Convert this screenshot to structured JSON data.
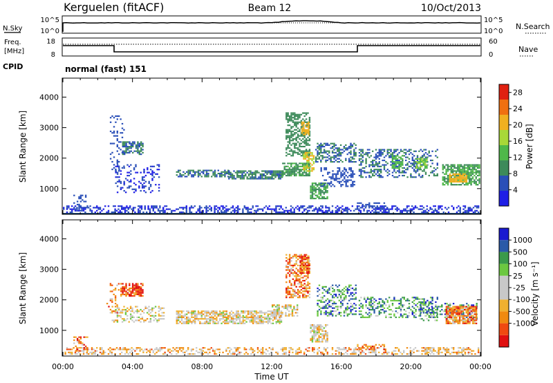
{
  "header": {
    "station": "Kerguelen (fitACF)",
    "beam": "Beam 12",
    "date": "10/Oct/2013"
  },
  "status": {
    "nsky_label": "N.Sky",
    "nsearch_label": "N.Search",
    "noise_ticks": [
      "10^5",
      "10^0"
    ],
    "freq_label": "Freq.",
    "freq_unit": "[MHz]",
    "freq_ticks": [
      "18",
      "8"
    ],
    "nave_label": "Nave",
    "nave_ticks": [
      "60",
      "0"
    ],
    "cpid_label": "CPID",
    "cpid_value": "normal (fast) 151"
  },
  "colors": {
    "power": [
      "#1f1fe6",
      "#2a4fb8",
      "#3d8a5a",
      "#4fb84a",
      "#a8d838",
      "#f0b020",
      "#f07010",
      "#e02010"
    ],
    "velocity": [
      "#e01010",
      "#f04a10",
      "#f08a10",
      "#f0b030",
      "#c8c8c8",
      "#c8c8c8",
      "#6cc840",
      "#3a9a4a",
      "#2a5aa8",
      "#1a1ad0"
    ]
  },
  "chart_data": [
    {
      "type": "heatmap",
      "panel": "power",
      "xlabel": "",
      "ylabel": "Slant Range [km]",
      "yticks": [
        "1000",
        "2000",
        "3000",
        "4000"
      ],
      "ylim": [
        180,
        4600
      ],
      "xlim": [
        0,
        24
      ],
      "colorbar": {
        "label": "Power [dB]",
        "ticks": [
          "4",
          "8",
          "12",
          "16",
          "20",
          "24",
          "28"
        ],
        "range": [
          0,
          30
        ]
      },
      "regions": [
        {
          "t0": 0.0,
          "t1": 23.9,
          "r0": 250,
          "r1": 450,
          "value": 4,
          "density": 0.45
        },
        {
          "t0": 0.6,
          "t1": 1.4,
          "r0": 350,
          "r1": 800,
          "value": 6,
          "density": 0.35
        },
        {
          "t0": 2.7,
          "t1": 3.5,
          "r0": 1600,
          "r1": 3400,
          "value": 6,
          "density": 0.18
        },
        {
          "t0": 3.4,
          "t1": 4.6,
          "r0": 2150,
          "r1": 2550,
          "value": 8,
          "density": 0.7
        },
        {
          "t0": 3.0,
          "t1": 5.5,
          "r0": 900,
          "r1": 1800,
          "value": 4,
          "density": 0.22
        },
        {
          "t0": 6.5,
          "t1": 9.5,
          "r0": 1380,
          "r1": 1620,
          "value": 8,
          "density": 0.6
        },
        {
          "t0": 9.5,
          "t1": 12.6,
          "r0": 1350,
          "r1": 1600,
          "value": 9,
          "density": 0.75
        },
        {
          "t0": 12.6,
          "t1": 14.2,
          "r0": 1450,
          "r1": 1850,
          "value": 11,
          "density": 0.75
        },
        {
          "t0": 12.8,
          "t1": 14.2,
          "r0": 2100,
          "r1": 3500,
          "value": 10,
          "density": 0.55
        },
        {
          "t0": 13.7,
          "t1": 14.1,
          "r0": 2800,
          "r1": 3200,
          "value": 22,
          "density": 0.85
        },
        {
          "t0": 13.8,
          "t1": 14.4,
          "r0": 1600,
          "r1": 2200,
          "value": 20,
          "density": 0.6
        },
        {
          "t0": 14.2,
          "t1": 15.2,
          "r0": 700,
          "r1": 1200,
          "value": 12,
          "density": 0.7
        },
        {
          "t0": 14.5,
          "t1": 16.8,
          "r0": 1900,
          "r1": 2500,
          "value": 8,
          "density": 0.45
        },
        {
          "t0": 14.8,
          "t1": 16.8,
          "r0": 1100,
          "r1": 1700,
          "value": 6,
          "density": 0.35
        },
        {
          "t0": 16.9,
          "t1": 18.5,
          "r0": 400,
          "r1": 550,
          "value": 6,
          "density": 0.4
        },
        {
          "t0": 17.0,
          "t1": 21.5,
          "r0": 1400,
          "r1": 2300,
          "value": 8,
          "density": 0.38
        },
        {
          "t0": 18.9,
          "t1": 19.5,
          "r0": 1700,
          "r1": 2100,
          "value": 14,
          "density": 0.7
        },
        {
          "t0": 20.3,
          "t1": 20.9,
          "r0": 1700,
          "r1": 2000,
          "value": 15,
          "density": 0.7
        },
        {
          "t0": 21.8,
          "t1": 23.9,
          "r0": 1150,
          "r1": 1800,
          "value": 12,
          "density": 0.75
        },
        {
          "t0": 22.2,
          "t1": 23.2,
          "r0": 1250,
          "r1": 1500,
          "value": 22,
          "density": 0.8
        }
      ]
    },
    {
      "type": "heatmap",
      "panel": "velocity",
      "xlabel": "Time UT",
      "ylabel": "Slant Range [km]",
      "xticks": [
        "00:00",
        "04:00",
        "08:00",
        "12:00",
        "16:00",
        "20:00",
        "00:00"
      ],
      "yticks": [
        "1000",
        "2000",
        "3000",
        "4000"
      ],
      "ylim": [
        180,
        4600
      ],
      "xlim": [
        0,
        24
      ],
      "colorbar": {
        "label": "Velocity [m s⁻¹]",
        "ticks": [
          "1000",
          "500",
          "100",
          "25",
          "-25",
          "-100",
          "-500",
          "-1000"
        ]
      },
      "regions": [
        {
          "t0": 0.0,
          "t1": 23.9,
          "r0": 250,
          "r1": 450,
          "value": 3,
          "density": 0.4
        },
        {
          "t0": 0.6,
          "t1": 1.4,
          "r0": 350,
          "r1": 800,
          "value": 2,
          "density": 0.35
        },
        {
          "t0": 2.5,
          "t1": 3.2,
          "r0": 1600,
          "r1": 2600,
          "value": 2,
          "density": 0.2
        },
        {
          "t0": 3.3,
          "t1": 4.6,
          "r0": 2150,
          "r1": 2550,
          "value": 1,
          "density": 0.75
        },
        {
          "t0": 2.8,
          "t1": 5.8,
          "r0": 1300,
          "r1": 1800,
          "value": 4,
          "density": 0.35
        },
        {
          "t0": 6.5,
          "t1": 12.6,
          "r0": 1250,
          "r1": 1650,
          "value": 4,
          "density": 0.7
        },
        {
          "t0": 12.0,
          "t1": 13.5,
          "r0": 1500,
          "r1": 1850,
          "value": 4,
          "density": 0.55
        },
        {
          "t0": 12.8,
          "t1": 14.2,
          "r0": 2100,
          "r1": 3500,
          "value": 2,
          "density": 0.55
        },
        {
          "t0": 13.6,
          "t1": 14.1,
          "r0": 2900,
          "r1": 3450,
          "value": 1,
          "density": 0.8
        },
        {
          "t0": 14.2,
          "t1": 15.2,
          "r0": 650,
          "r1": 1200,
          "value": 4,
          "density": 0.7
        },
        {
          "t0": 14.6,
          "t1": 16.8,
          "r0": 1500,
          "r1": 2500,
          "value": 7,
          "density": 0.4
        },
        {
          "t0": 16.9,
          "t1": 18.5,
          "r0": 400,
          "r1": 550,
          "value": 2,
          "density": 0.35
        },
        {
          "t0": 17.0,
          "t1": 21.5,
          "r0": 1450,
          "r1": 2100,
          "value": 7,
          "density": 0.4
        },
        {
          "t0": 20.5,
          "t1": 23.8,
          "r0": 1350,
          "r1": 1900,
          "value": 7,
          "density": 0.35
        },
        {
          "t0": 22.0,
          "t1": 23.8,
          "r0": 1250,
          "r1": 1800,
          "value": 2,
          "density": 0.8
        }
      ]
    }
  ]
}
